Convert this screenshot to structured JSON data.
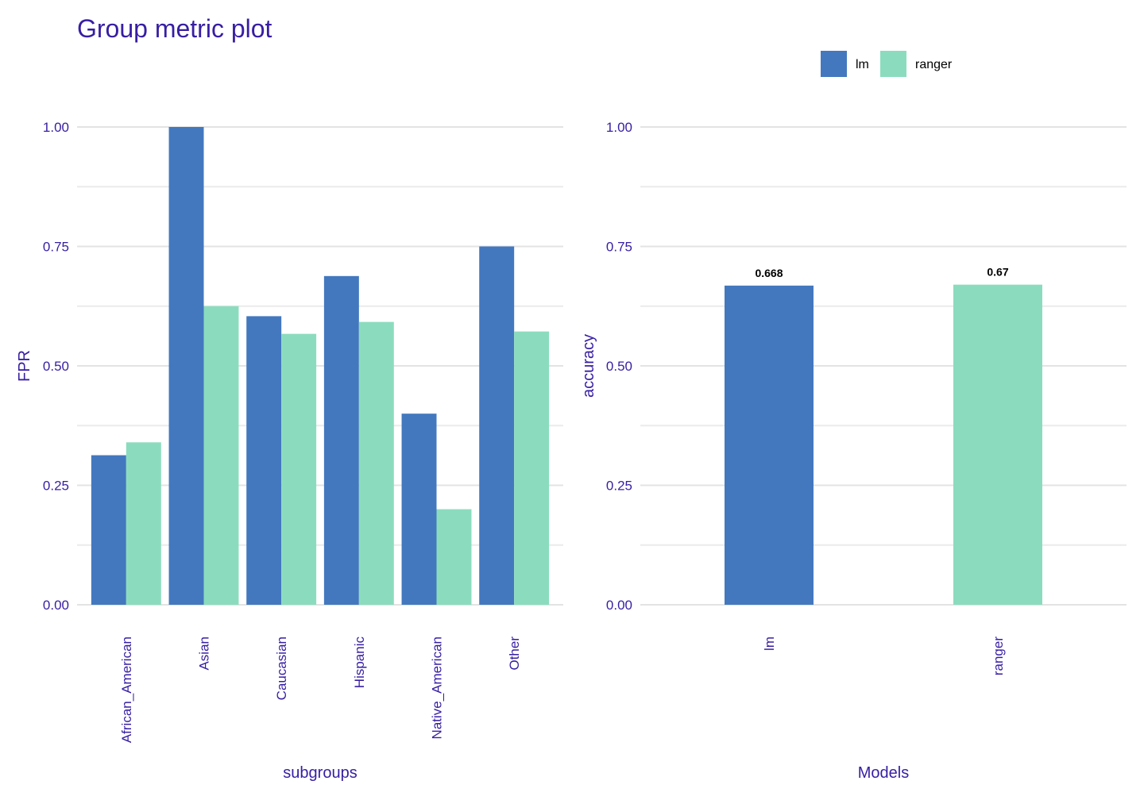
{
  "title": "Group metric plot",
  "legend": {
    "position": "top-right",
    "items": [
      {
        "label": "lm",
        "color": "#4378bf"
      },
      {
        "label": "ranger",
        "color": "#8bdcbe"
      }
    ]
  },
  "chart_data": [
    {
      "type": "bar",
      "xlabel": "subgroups",
      "ylabel": "FPR",
      "ylim": [
        0,
        1
      ],
      "yticks": [
        "0.00",
        "0.25",
        "0.50",
        "0.75",
        "1.00"
      ],
      "grid": true,
      "categories": [
        "African_American",
        "Asian",
        "Caucasian",
        "Hispanic",
        "Native_American",
        "Other"
      ],
      "series": [
        {
          "name": "lm",
          "color": "#4378bf",
          "values": [
            0.313,
            1.0,
            0.604,
            0.688,
            0.4,
            0.75
          ]
        },
        {
          "name": "ranger",
          "color": "#8bdcbe",
          "values": [
            0.34,
            0.625,
            0.567,
            0.592,
            0.2,
            0.572
          ]
        }
      ]
    },
    {
      "type": "bar",
      "xlabel": "Models",
      "ylabel": "accuracy",
      "ylim": [
        0,
        1
      ],
      "yticks": [
        "0.00",
        "0.25",
        "0.50",
        "0.75",
        "1.00"
      ],
      "grid": true,
      "categories": [
        "lm",
        "ranger"
      ],
      "values": [
        0.668,
        0.67
      ],
      "colors": [
        "#4378bf",
        "#8bdcbe"
      ],
      "data_labels": [
        "0.668",
        "0.67"
      ]
    }
  ]
}
